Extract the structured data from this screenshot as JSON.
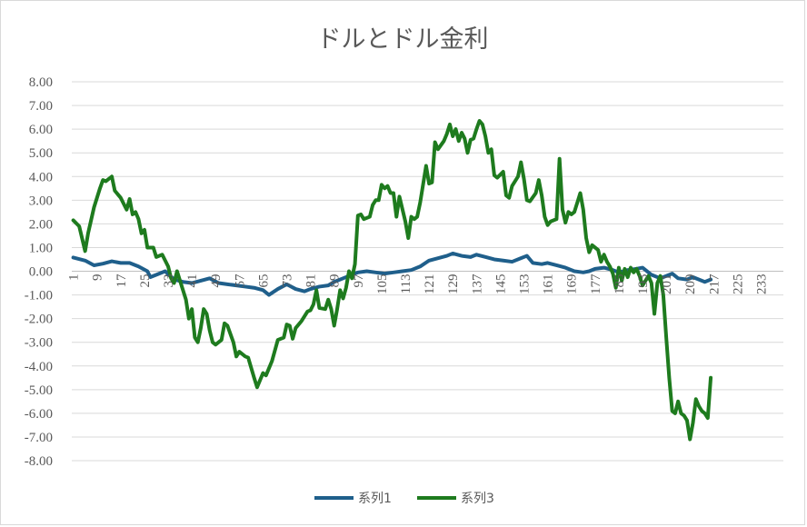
{
  "chart_data": {
    "type": "line",
    "title": "ドルとドル金利",
    "ylim": [
      -8,
      8
    ],
    "y_ticks": [
      "8.00",
      "7.00",
      "6.00",
      "5.00",
      "4.00",
      "3.00",
      "2.00",
      "1.00",
      "0.00",
      "-1.00",
      "-2.00",
      "-3.00",
      "-4.00",
      "-5.00",
      "-6.00",
      "-7.00",
      "-8.00"
    ],
    "x_count": 240,
    "x_ticks": [
      "1",
      "9",
      "17",
      "25",
      "33",
      "41",
      "49",
      "57",
      "65",
      "73",
      "81",
      "89",
      "97",
      "105",
      "113",
      "121",
      "129",
      "137",
      "145",
      "153",
      "161",
      "169",
      "177",
      "185",
      "193",
      "201",
      "209",
      "217",
      "225",
      "233"
    ],
    "grid": true,
    "legend_position": "bottom",
    "series": [
      {
        "name": "系列1",
        "color": "#1f5f8b",
        "anchors": [
          [
            1,
            0.58
          ],
          [
            5,
            0.45
          ],
          [
            8,
            0.25
          ],
          [
            11,
            0.32
          ],
          [
            14,
            0.42
          ],
          [
            17,
            0.35
          ],
          [
            20,
            0.35
          ],
          [
            23,
            0.2
          ],
          [
            26,
            0.0
          ],
          [
            27,
            -0.25
          ],
          [
            30,
            -0.1
          ],
          [
            32,
            0.0
          ],
          [
            35,
            -0.35
          ],
          [
            38,
            -0.45
          ],
          [
            41,
            -0.5
          ],
          [
            44,
            -0.4
          ],
          [
            47,
            -0.3
          ],
          [
            50,
            -0.5
          ],
          [
            53,
            -0.55
          ],
          [
            56,
            -0.6
          ],
          [
            59,
            -0.65
          ],
          [
            62,
            -0.7
          ],
          [
            65,
            -0.8
          ],
          [
            67,
            -1.0
          ],
          [
            70,
            -0.75
          ],
          [
            73,
            -0.55
          ],
          [
            76,
            -0.75
          ],
          [
            79,
            -0.85
          ],
          [
            81,
            -0.75
          ],
          [
            84,
            -0.65
          ],
          [
            87,
            -0.6
          ],
          [
            89,
            -0.45
          ],
          [
            92,
            -0.3
          ],
          [
            95,
            -0.15
          ],
          [
            97,
            -0.05
          ],
          [
            100,
            0.0
          ],
          [
            103,
            -0.05
          ],
          [
            106,
            -0.1
          ],
          [
            109,
            -0.05
          ],
          [
            112,
            0.0
          ],
          [
            115,
            0.05
          ],
          [
            118,
            0.2
          ],
          [
            121,
            0.45
          ],
          [
            124,
            0.55
          ],
          [
            127,
            0.65
          ],
          [
            129,
            0.75
          ],
          [
            132,
            0.65
          ],
          [
            135,
            0.6
          ],
          [
            137,
            0.7
          ],
          [
            140,
            0.6
          ],
          [
            143,
            0.5
          ],
          [
            146,
            0.45
          ],
          [
            149,
            0.4
          ],
          [
            152,
            0.55
          ],
          [
            154,
            0.65
          ],
          [
            156,
            0.35
          ],
          [
            159,
            0.3
          ],
          [
            161,
            0.35
          ],
          [
            164,
            0.25
          ],
          [
            167,
            0.15
          ],
          [
            170,
            0.0
          ],
          [
            173,
            -0.05
          ],
          [
            175,
            0.0
          ],
          [
            177,
            0.1
          ],
          [
            180,
            0.15
          ],
          [
            183,
            0.05
          ],
          [
            185,
            -0.05
          ],
          [
            188,
            0.05
          ],
          [
            191,
            0.1
          ],
          [
            193,
            0.15
          ],
          [
            196,
            -0.15
          ],
          [
            199,
            -0.3
          ],
          [
            201,
            -0.2
          ],
          [
            203,
            -0.1
          ],
          [
            205,
            -0.3
          ],
          [
            208,
            -0.35
          ],
          [
            210,
            -0.25
          ],
          [
            212,
            -0.35
          ],
          [
            214,
            -0.45
          ],
          [
            216,
            -0.35
          ]
        ]
      },
      {
        "name": "系列3",
        "color": "#1e7b1e",
        "anchors": [
          [
            1,
            2.15
          ],
          [
            3,
            1.9
          ],
          [
            5,
            0.85
          ],
          [
            6,
            1.6
          ],
          [
            8,
            2.7
          ],
          [
            10,
            3.5
          ],
          [
            11,
            3.85
          ],
          [
            12,
            3.8
          ],
          [
            14,
            4.0
          ],
          [
            15,
            3.4
          ],
          [
            17,
            3.1
          ],
          [
            19,
            2.6
          ],
          [
            20,
            3.05
          ],
          [
            21,
            2.4
          ],
          [
            22,
            2.5
          ],
          [
            23,
            2.2
          ],
          [
            24,
            1.6
          ],
          [
            25,
            1.75
          ],
          [
            26,
            1.0
          ],
          [
            28,
            1.0
          ],
          [
            29,
            0.6
          ],
          [
            31,
            0.7
          ],
          [
            33,
            0.2
          ],
          [
            34,
            -0.3
          ],
          [
            35,
            -0.5
          ],
          [
            36,
            0.0
          ],
          [
            37,
            -0.4
          ],
          [
            39,
            -1.2
          ],
          [
            40,
            -2.0
          ],
          [
            41,
            -1.6
          ],
          [
            42,
            -2.8
          ],
          [
            43,
            -3.0
          ],
          [
            44,
            -2.4
          ],
          [
            45,
            -1.6
          ],
          [
            46,
            -1.8
          ],
          [
            47,
            -2.5
          ],
          [
            48,
            -3.0
          ],
          [
            49,
            -3.1
          ],
          [
            51,
            -2.9
          ],
          [
            52,
            -2.2
          ],
          [
            53,
            -2.3
          ],
          [
            55,
            -3.0
          ],
          [
            56,
            -3.6
          ],
          [
            57,
            -3.4
          ],
          [
            59,
            -3.6
          ],
          [
            60,
            -3.65
          ],
          [
            62,
            -4.5
          ],
          [
            63,
            -4.9
          ],
          [
            64,
            -4.6
          ],
          [
            65,
            -4.3
          ],
          [
            66,
            -4.4
          ],
          [
            68,
            -3.8
          ],
          [
            70,
            -2.9
          ],
          [
            72,
            -2.8
          ],
          [
            73,
            -2.25
          ],
          [
            74,
            -2.3
          ],
          [
            75,
            -2.85
          ],
          [
            76,
            -2.4
          ],
          [
            78,
            -2.1
          ],
          [
            80,
            -1.7
          ],
          [
            81,
            -1.65
          ],
          [
            82,
            -1.4
          ],
          [
            83,
            -0.8
          ],
          [
            84,
            -1.55
          ],
          [
            86,
            -1.6
          ],
          [
            87,
            -1.2
          ],
          [
            88,
            -1.6
          ],
          [
            89,
            -2.3
          ],
          [
            90,
            -1.6
          ],
          [
            91,
            -0.8
          ],
          [
            92,
            -1.15
          ],
          [
            93,
            -0.7
          ],
          [
            94,
            0.0
          ],
          [
            95,
            -0.3
          ],
          [
            96,
            0.3
          ],
          [
            97,
            2.35
          ],
          [
            98,
            2.4
          ],
          [
            99,
            2.2
          ],
          [
            101,
            2.3
          ],
          [
            102,
            2.8
          ],
          [
            103,
            3.0
          ],
          [
            104,
            3.0
          ],
          [
            105,
            3.65
          ],
          [
            106,
            3.5
          ],
          [
            107,
            3.6
          ],
          [
            108,
            3.3
          ],
          [
            109,
            3.3
          ],
          [
            110,
            2.3
          ],
          [
            111,
            3.15
          ],
          [
            113,
            2.1
          ],
          [
            114,
            1.4
          ],
          [
            115,
            2.3
          ],
          [
            116,
            2.2
          ],
          [
            117,
            2.3
          ],
          [
            118,
            2.9
          ],
          [
            120,
            4.45
          ],
          [
            121,
            3.7
          ],
          [
            122,
            3.75
          ],
          [
            123,
            5.45
          ],
          [
            124,
            5.15
          ],
          [
            126,
            5.5
          ],
          [
            127,
            5.8
          ],
          [
            128,
            6.2
          ],
          [
            129,
            5.7
          ],
          [
            130,
            6.0
          ],
          [
            131,
            5.5
          ],
          [
            132,
            5.85
          ],
          [
            133,
            5.6
          ],
          [
            134,
            5.0
          ],
          [
            135,
            5.55
          ],
          [
            136,
            5.6
          ],
          [
            137,
            6.0
          ],
          [
            138,
            6.35
          ],
          [
            139,
            6.2
          ],
          [
            140,
            5.7
          ],
          [
            141,
            5.0
          ],
          [
            142,
            5.15
          ],
          [
            143,
            4.05
          ],
          [
            144,
            3.95
          ],
          [
            146,
            4.2
          ],
          [
            147,
            3.2
          ],
          [
            148,
            3.1
          ],
          [
            149,
            3.6
          ],
          [
            151,
            4.0
          ],
          [
            152,
            4.6
          ],
          [
            153,
            3.9
          ],
          [
            154,
            3.0
          ],
          [
            155,
            2.95
          ],
          [
            157,
            3.3
          ],
          [
            158,
            3.85
          ],
          [
            159,
            3.2
          ],
          [
            160,
            2.3
          ],
          [
            161,
            1.95
          ],
          [
            162,
            2.1
          ],
          [
            164,
            2.2
          ],
          [
            165,
            4.75
          ],
          [
            166,
            2.6
          ],
          [
            167,
            2.05
          ],
          [
            168,
            2.5
          ],
          [
            169,
            2.4
          ],
          [
            170,
            2.5
          ],
          [
            171,
            2.9
          ],
          [
            172,
            3.3
          ],
          [
            173,
            2.6
          ],
          [
            174,
            1.4
          ],
          [
            175,
            0.8
          ],
          [
            176,
            1.1
          ],
          [
            177,
            1.0
          ],
          [
            178,
            0.9
          ],
          [
            179,
            0.4
          ],
          [
            180,
            0.7
          ],
          [
            181,
            0.4
          ],
          [
            182,
            0.2
          ],
          [
            183,
            -0.1
          ],
          [
            184,
            -0.7
          ],
          [
            185,
            0.15
          ],
          [
            186,
            -0.4
          ],
          [
            187,
            0.1
          ],
          [
            188,
            -0.25
          ],
          [
            189,
            0.15
          ],
          [
            190,
            -0.05
          ],
          [
            191,
            0.1
          ],
          [
            192,
            -0.2
          ],
          [
            193,
            -0.6
          ],
          [
            194,
            -0.4
          ],
          [
            195,
            -0.2
          ],
          [
            196,
            -0.5
          ],
          [
            197,
            -1.8
          ],
          [
            198,
            -0.5
          ],
          [
            199,
            -0.2
          ],
          [
            200,
            -1.0
          ],
          [
            201,
            -2.8
          ],
          [
            202,
            -4.5
          ],
          [
            203,
            -5.9
          ],
          [
            204,
            -6.0
          ],
          [
            205,
            -5.5
          ],
          [
            206,
            -6.0
          ],
          [
            207,
            -6.1
          ],
          [
            208,
            -6.3
          ],
          [
            209,
            -7.1
          ],
          [
            210,
            -6.4
          ],
          [
            211,
            -5.4
          ],
          [
            212,
            -5.7
          ],
          [
            213,
            -5.9
          ],
          [
            214,
            -6.0
          ],
          [
            215,
            -6.2
          ],
          [
            216,
            -4.5
          ]
        ]
      }
    ]
  }
}
